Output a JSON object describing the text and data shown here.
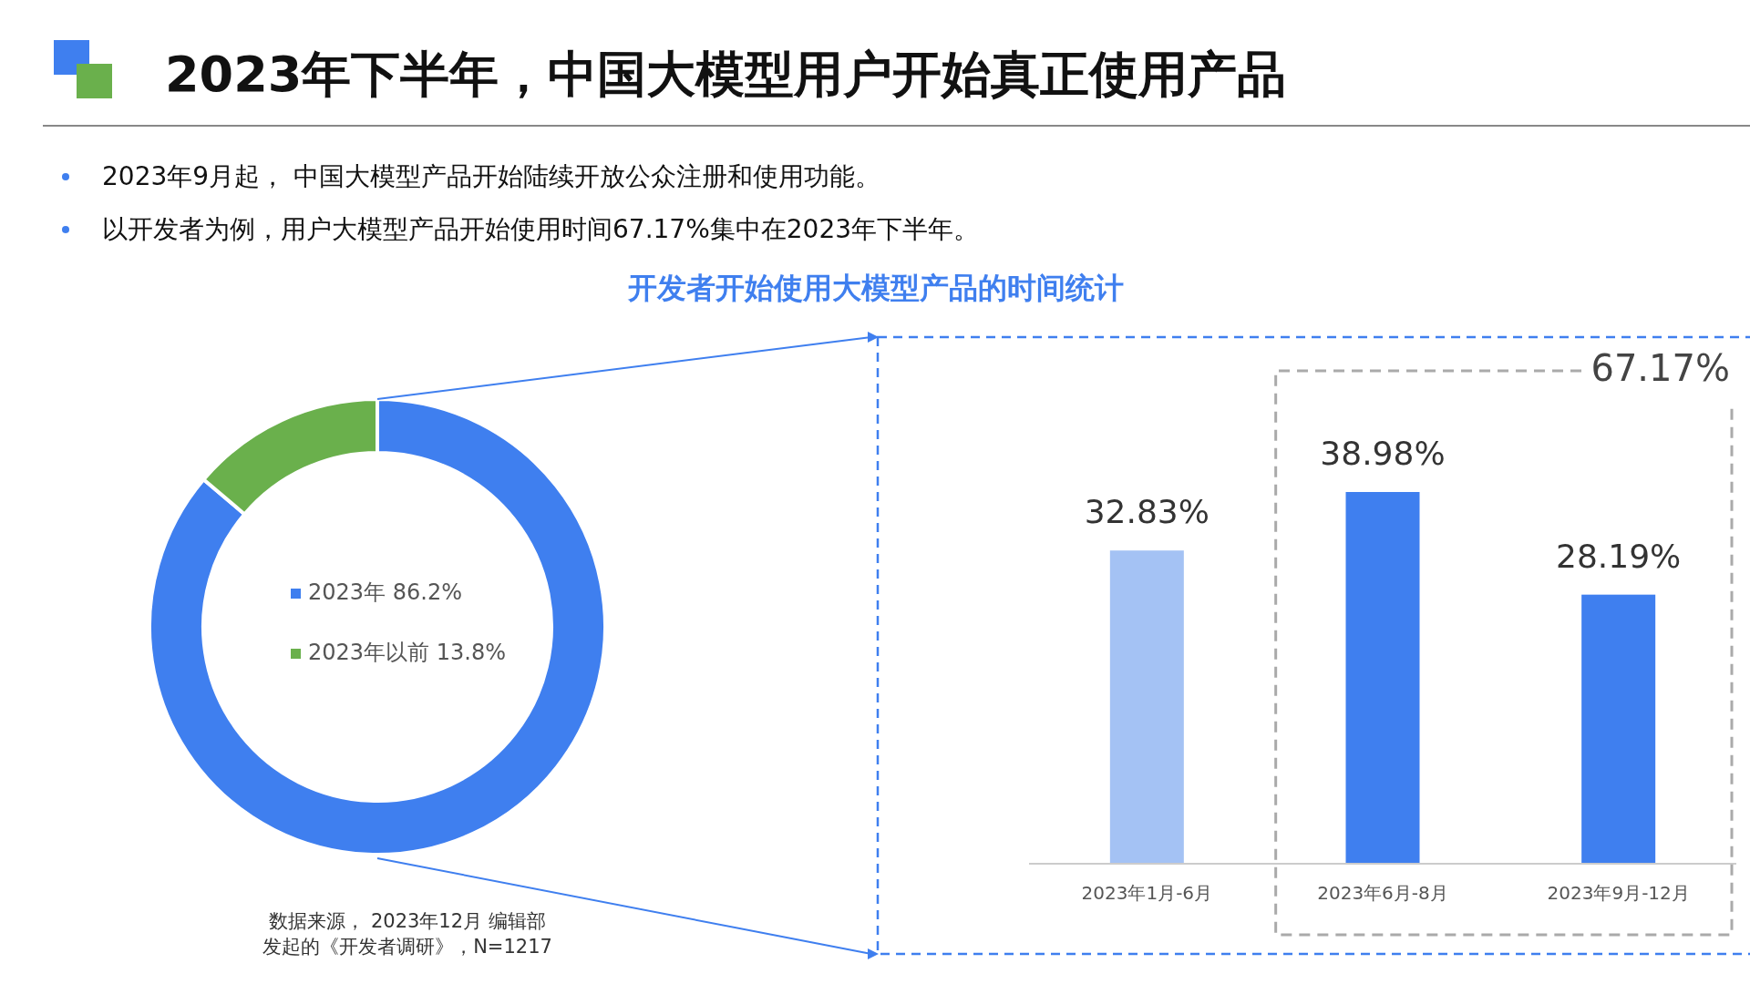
{
  "chart_data": [
    {
      "type": "donut",
      "title": "2023年下半年，中国大模型用户开始真正使用产品",
      "annotations": [
        "2023年9月起， 中国大模型产品开始陆续开放公众注册和使用功能。",
        "以开发者为例，用户大模型产品开始使用时间67.17%集中在2023年下半年。",
        "开发者开始使用大模型产品的时间统计",
        "数据来源， 2023年12月 编辑部",
        "发起的《开发者调研》，N=1217"
      ],
      "categories": [
        "2023年",
        "2023年以前"
      ],
      "values": [
        86.2,
        13.8
      ],
      "colors": [
        "#3f7fef",
        "#6ab04c"
      ],
      "value_labels": [
        "86.2%",
        "13.8%"
      ],
      "legend": "center"
    },
    {
      "type": "bar",
      "categories": [
        "2023年1月-6月",
        "2023年6月-8月",
        "2023年9月-12月"
      ],
      "values": [
        32.83,
        38.98,
        28.19
      ],
      "colors": [
        "#a4c2f4",
        "#3f7fef",
        "#3f7fef"
      ],
      "value_labels": [
        "32.83%",
        "38.98%",
        "28.19%"
      ],
      "annotations": [
        "67.17%"
      ]
    }
  ]
}
